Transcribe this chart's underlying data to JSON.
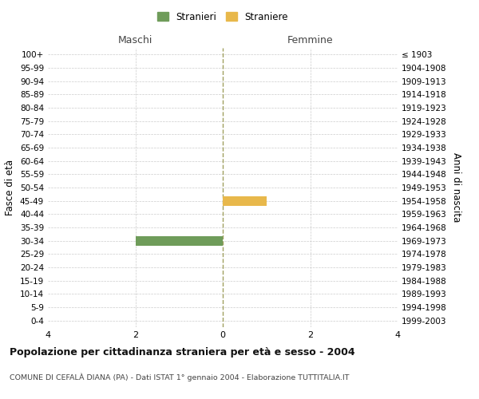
{
  "age_groups": [
    "100+",
    "95-99",
    "90-94",
    "85-89",
    "80-84",
    "75-79",
    "70-74",
    "65-69",
    "60-64",
    "55-59",
    "50-54",
    "45-49",
    "40-44",
    "35-39",
    "30-34",
    "25-29",
    "20-24",
    "15-19",
    "10-14",
    "5-9",
    "0-4"
  ],
  "birth_years": [
    "≤ 1903",
    "1904-1908",
    "1909-1913",
    "1914-1918",
    "1919-1923",
    "1924-1928",
    "1929-1933",
    "1934-1938",
    "1939-1943",
    "1944-1948",
    "1949-1953",
    "1954-1958",
    "1959-1963",
    "1964-1968",
    "1969-1973",
    "1974-1978",
    "1979-1983",
    "1984-1988",
    "1989-1993",
    "1994-1998",
    "1999-2003"
  ],
  "males": [
    0,
    0,
    0,
    0,
    0,
    0,
    0,
    0,
    0,
    0,
    0,
    0,
    0,
    0,
    2,
    0,
    0,
    0,
    0,
    0,
    0
  ],
  "females": [
    0,
    0,
    0,
    0,
    0,
    0,
    0,
    0,
    0,
    0,
    0,
    1,
    0,
    0,
    0,
    0,
    0,
    0,
    0,
    0,
    0
  ],
  "male_color": "#6f9c5a",
  "female_color": "#e8b84b",
  "center_line_color": "#a0a060",
  "xlim": 4,
  "title": "Popolazione per cittadinanza straniera per età e sesso - 2004",
  "subtitle": "COMUNE DI CEFALÀ DIANA (PA) - Dati ISTAT 1° gennaio 2004 - Elaborazione TUTTITALIA.IT",
  "legend_male": "Stranieri",
  "legend_female": "Straniere",
  "left_header": "Maschi",
  "right_header": "Femmine",
  "left_yaxis_label": "Fasce di età",
  "right_yaxis_label": "Anni di nascita",
  "grid_color": "#cccccc",
  "background_color": "#ffffff",
  "bar_height": 0.7
}
